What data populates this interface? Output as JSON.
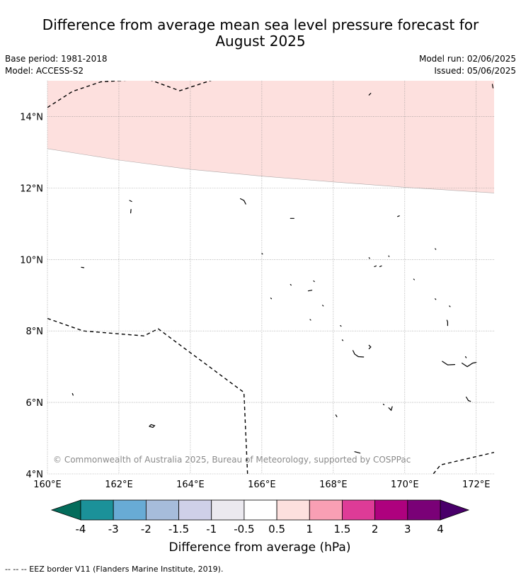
{
  "title_line1": "Difference from average mean sea level pressure forecast for",
  "title_line2": "August 2025",
  "base_period": "Base period: 1981-2018",
  "model": "Model: ACCESS-S2",
  "model_run": "Model run: 02/06/2025",
  "issued": "Issued: 05/06/2025",
  "copyright": "© Commonwealth of Australia 2025, Bureau of Meteorology, supported by COSPPac",
  "map": {
    "lon_range": [
      160,
      172.5
    ],
    "lat_range": [
      4,
      15
    ],
    "x_ticks": [
      {
        "value": 160,
        "label": "160°E"
      },
      {
        "value": 162,
        "label": "162°E"
      },
      {
        "value": 164,
        "label": "164°E"
      },
      {
        "value": 166,
        "label": "166°E"
      },
      {
        "value": 168,
        "label": "168°E"
      },
      {
        "value": 170,
        "label": "170°E"
      },
      {
        "value": 172,
        "label": "172°E"
      }
    ],
    "y_ticks": [
      {
        "value": 4,
        "label": "4°N"
      },
      {
        "value": 6,
        "label": "6°N"
      },
      {
        "value": 8,
        "label": "8°N"
      },
      {
        "value": 10,
        "label": "10°N"
      },
      {
        "value": 12,
        "label": "12°N"
      },
      {
        "value": 14,
        "label": "14°N"
      }
    ],
    "shaded_region": {
      "category": "0.5 to 1 hPa",
      "color": "#fde0de",
      "southern_boundary": [
        [
          160,
          13.1
        ],
        [
          162,
          12.78
        ],
        [
          164,
          12.52
        ],
        [
          166,
          12.33
        ],
        [
          168,
          12.17
        ],
        [
          170,
          12.02
        ],
        [
          172.5,
          11.86
        ]
      ]
    },
    "eez_borders": [
      [
        [
          160,
          14.25
        ],
        [
          160.7,
          14.7
        ],
        [
          161.5,
          14.97
        ],
        [
          162.8,
          15.05
        ],
        [
          163.7,
          14.72
        ],
        [
          164.7,
          15.05
        ]
      ],
      [
        [
          160,
          8.35
        ],
        [
          161,
          8.0
        ],
        [
          162.7,
          7.86
        ],
        [
          163.1,
          8.06
        ],
        [
          165.5,
          6.28
        ],
        [
          165.6,
          4.0
        ]
      ],
      [
        [
          170.8,
          4.0
        ],
        [
          171,
          4.25
        ],
        [
          172.5,
          4.6
        ]
      ]
    ],
    "islands": [
      [
        [
          162.3,
          11.65
        ],
        [
          162.36,
          11.62
        ]
      ],
      [
        [
          162.34,
          11.4
        ],
        [
          162.33,
          11.3
        ]
      ],
      [
        [
          165.4,
          11.7
        ],
        [
          165.5,
          11.65
        ],
        [
          165.55,
          11.55
        ]
      ],
      [
        [
          166.8,
          11.15
        ],
        [
          166.9,
          11.15
        ]
      ],
      [
        [
          160.95,
          9.78
        ],
        [
          161.02,
          9.77
        ]
      ],
      [
        [
          166,
          10.17
        ],
        [
          166.02,
          10.15
        ]
      ],
      [
        [
          169,
          14.6
        ],
        [
          169.05,
          14.65
        ]
      ],
      [
        [
          172.45,
          14.9
        ],
        [
          172.47,
          14.8
        ]
      ],
      [
        [
          169.8,
          11.2
        ],
        [
          169.85,
          11.22
        ]
      ],
      [
        [
          170.85,
          10.3
        ],
        [
          170.87,
          10.28
        ]
      ],
      [
        [
          169.55,
          10.1
        ],
        [
          169.56,
          10.08
        ]
      ],
      [
        [
          169,
          10.05
        ],
        [
          169.02,
          10.03
        ]
      ],
      [
        [
          169.15,
          9.8
        ],
        [
          169.2,
          9.82
        ]
      ],
      [
        [
          169.3,
          9.8
        ],
        [
          169.35,
          9.82
        ]
      ],
      [
        [
          170.25,
          9.45
        ],
        [
          170.27,
          9.43
        ]
      ],
      [
        [
          167.45,
          9.4
        ],
        [
          167.47,
          9.38
        ]
      ],
      [
        [
          166.8,
          9.3
        ],
        [
          166.82,
          9.28
        ]
      ],
      [
        [
          167.3,
          9.12
        ],
        [
          167.4,
          9.14
        ]
      ],
      [
        [
          166.25,
          8.92
        ],
        [
          166.27,
          8.9
        ]
      ],
      [
        [
          170.85,
          8.9
        ],
        [
          170.87,
          8.88
        ]
      ],
      [
        [
          171.25,
          8.7
        ],
        [
          171.27,
          8.68
        ]
      ],
      [
        [
          167.7,
          8.72
        ],
        [
          167.72,
          8.7
        ]
      ],
      [
        [
          167.35,
          8.32
        ],
        [
          167.37,
          8.3
        ]
      ],
      [
        [
          171.18,
          8.3
        ],
        [
          171.2,
          8.25
        ],
        [
          171.2,
          8.15
        ]
      ],
      [
        [
          168.2,
          8.15
        ],
        [
          168.22,
          8.13
        ]
      ],
      [
        [
          168.25,
          7.75
        ],
        [
          168.27,
          7.73
        ]
      ],
      [
        [
          169,
          7.6
        ],
        [
          169.05,
          7.55
        ],
        [
          169,
          7.5
        ]
      ],
      [
        [
          168.55,
          7.45
        ],
        [
          168.6,
          7.35
        ],
        [
          168.7,
          7.28
        ],
        [
          168.85,
          7.27
        ]
      ],
      [
        [
          171.05,
          7.15
        ],
        [
          171.2,
          7.05
        ],
        [
          171.4,
          7.06
        ]
      ],
      [
        [
          171.6,
          7.1
        ],
        [
          171.75,
          7.0
        ],
        [
          171.9,
          7.1
        ],
        [
          172.0,
          7.12
        ]
      ],
      [
        [
          171.7,
          7.28
        ],
        [
          171.72,
          7.25
        ]
      ],
      [
        [
          171.72,
          6.15
        ],
        [
          171.78,
          6.05
        ],
        [
          171.84,
          6.03
        ]
      ],
      [
        [
          169.4,
          5.95
        ],
        [
          169.42,
          5.93
        ]
      ],
      [
        [
          169.55,
          5.85
        ],
        [
          169.62,
          5.78
        ],
        [
          169.65,
          5.88
        ]
      ],
      [
        [
          160.7,
          6.25
        ],
        [
          160.72,
          6.2
        ]
      ],
      [
        [
          162.85,
          5.33
        ],
        [
          162.95,
          5.3
        ],
        [
          163.0,
          5.35
        ],
        [
          162.9,
          5.38
        ],
        [
          162.85,
          5.33
        ]
      ],
      [
        [
          168.07,
          5.65
        ],
        [
          168.1,
          5.6
        ]
      ],
      [
        [
          168.6,
          4.62
        ],
        [
          168.75,
          4.58
        ]
      ]
    ]
  },
  "colorbar": {
    "label": "Difference from average (hPa)",
    "under_color": "#046c5b",
    "over_color": "#49006a",
    "colors": [
      "#1b9199",
      "#68abd5",
      "#a6bcdb",
      "#cfd0e8",
      "#ebe9ef",
      "#ffffff",
      "#fde0de",
      "#f99fb4",
      "#de3b97",
      "#ae017e",
      "#7a0177"
    ],
    "ticks": [
      "-4",
      "-3",
      "-2",
      "-1.5",
      "-1",
      "-0.5",
      "0.5",
      "1",
      "1.5",
      "2",
      "3",
      "4"
    ]
  },
  "legend_text": "--  --  -- EEZ border V11 (Flanders Marine Institute, 2019)."
}
